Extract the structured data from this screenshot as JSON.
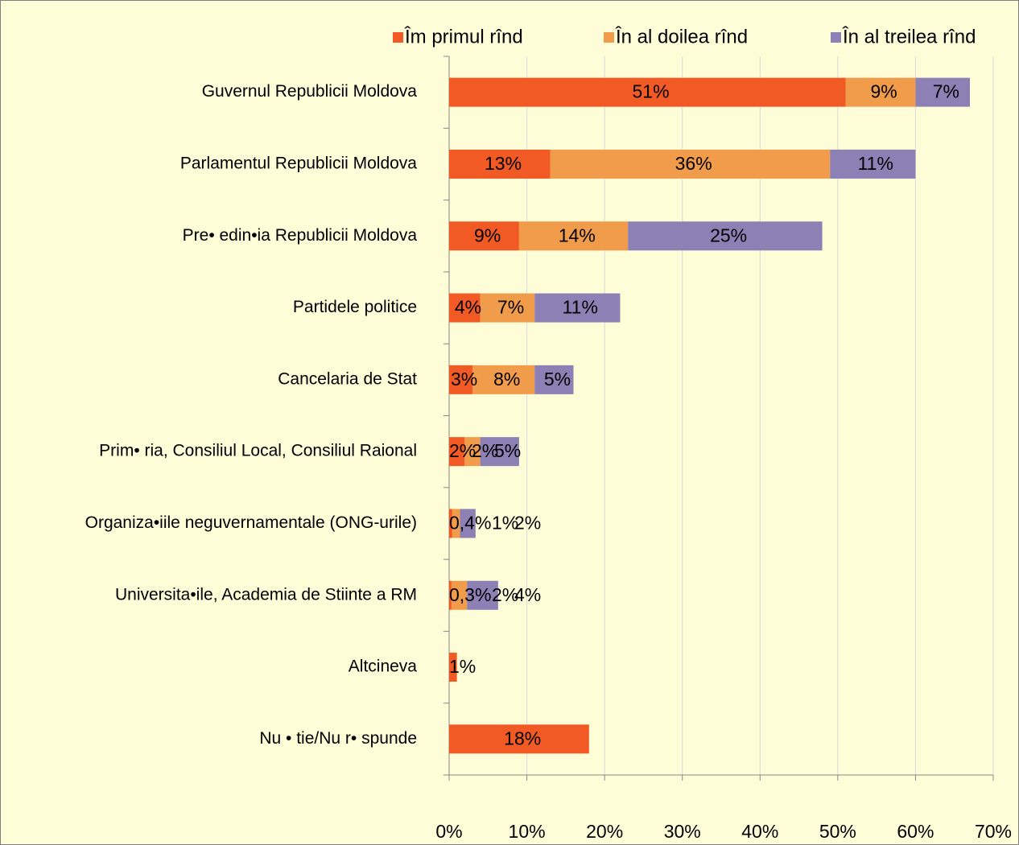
{
  "chart_data": {
    "type": "stacked_barh",
    "categories": [
      "Guvernul Republicii Moldova",
      "Parlamentul Republicii Moldova",
      "Pre• edin•ia Republicii Moldova",
      "Partidele politice",
      "Cancelaria de Stat",
      "Prim• ria, Consiliul Local, Consiliul Raional",
      "Organiza•iile neguvernamentale (ONG-urile)",
      "Universita•ile, Academia de Stiinte a RM",
      "Altcineva",
      "Nu • tie/Nu r• spunde"
    ],
    "series": [
      {
        "name": "Îm primul rînd",
        "color": "#F15A24",
        "values": [
          51,
          13,
          9,
          4,
          3,
          2,
          0.4,
          0.3,
          1,
          18
        ],
        "value_labels": [
          "51%",
          "13%",
          "9%",
          "4%",
          "3%",
          "2%",
          "0,4%",
          "0,3%",
          "1%",
          "18%"
        ]
      },
      {
        "name": "În al doilea rînd",
        "color": "#F19C4B",
        "values": [
          9,
          36,
          14,
          7,
          8,
          2,
          1,
          2,
          null,
          null
        ],
        "value_labels": [
          "9%",
          "36%",
          "14%",
          "7%",
          "8%",
          "2%",
          "1%",
          "2%",
          null,
          null
        ]
      },
      {
        "name": "În al treilea rînd",
        "color": "#8C80B4",
        "values": [
          7,
          11,
          25,
          11,
          5,
          5,
          2,
          4,
          null,
          null
        ],
        "value_labels": [
          "7%",
          "11%",
          "25%",
          "11%",
          "5%",
          "5%",
          "2%",
          "4%",
          null,
          null
        ]
      }
    ],
    "xlim": [
      0,
      70
    ],
    "xticks": [
      {
        "value": 0,
        "label": "0%"
      },
      {
        "value": 10,
        "label": "10%"
      },
      {
        "value": 20,
        "label": "20%"
      },
      {
        "value": 30,
        "label": "30%"
      },
      {
        "value": 40,
        "label": "40%"
      },
      {
        "value": 50,
        "label": "50%"
      },
      {
        "value": 60,
        "label": "60%"
      },
      {
        "value": 70,
        "label": "70%"
      }
    ],
    "grid": true,
    "legend": "top"
  }
}
